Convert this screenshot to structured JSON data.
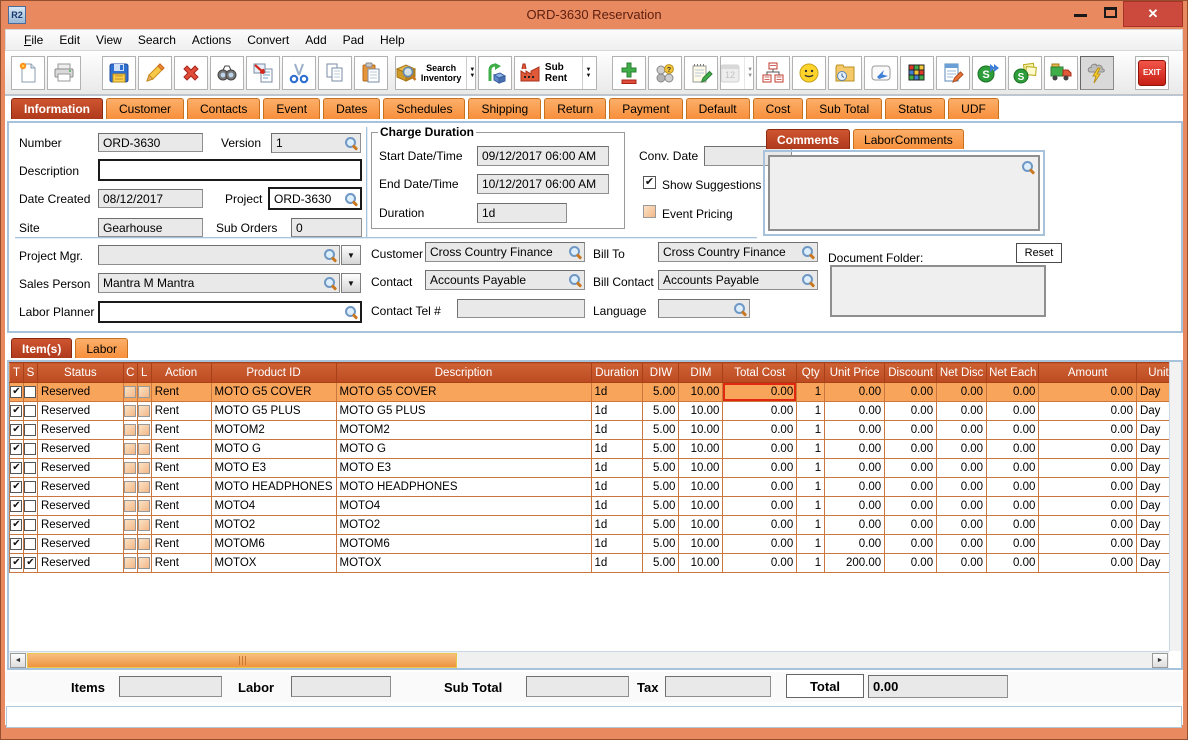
{
  "window": {
    "title": "ORD-3630 Reservation",
    "app_icon_label": "R2"
  },
  "menu": {
    "items": [
      "File",
      "Edit",
      "View",
      "Search",
      "Actions",
      "Convert",
      "Add",
      "Pad",
      "Help"
    ]
  },
  "toolbar": {
    "search_inventory_line1": "Search",
    "search_inventory_line2": "Inventory",
    "sub_rent_label": "Sub Rent",
    "exit_label": "EXIT",
    "icons": [
      "new-document",
      "print",
      "save",
      "edit-pencil",
      "delete",
      "find-binoculars",
      "transfer-document",
      "cut",
      "copy",
      "paste",
      "search-inventory",
      "availability-cube",
      "sub-rent-factory",
      "add-remove",
      "group-query",
      "notepad-edit",
      "calendar",
      "org-chart",
      "smiley",
      "folder-clock",
      "send-key",
      "color-blocks",
      "document-edit",
      "sync-forward",
      "sync-notes",
      "truck",
      "lightning",
      "exit"
    ]
  },
  "tabs": {
    "active": "Information",
    "items": [
      "Information",
      "Customer",
      "Contacts",
      "Event",
      "Dates",
      "Schedules",
      "Shipping",
      "Return",
      "Payment",
      "Default",
      "Cost",
      "Sub Total",
      "Status",
      "UDF"
    ]
  },
  "info": {
    "number_label": "Number",
    "number": "ORD-3630",
    "version_label": "Version",
    "version": "1",
    "description_label": "Description",
    "description": "",
    "date_created_label": "Date Created",
    "date_created": "08/12/2017",
    "project_label": "Project",
    "project": "ORD-3630",
    "site_label": "Site",
    "site": "Gearhouse",
    "sub_orders_label": "Sub Orders",
    "sub_orders": "0",
    "project_mgr_label": "Project Mgr.",
    "project_mgr": "",
    "sales_person_label": "Sales Person",
    "sales_person": "Mantra M Mantra",
    "labor_planner_label": "Labor Planner",
    "labor_planner": "",
    "charge_duration": {
      "title": "Charge Duration",
      "start_label": "Start Date/Time",
      "start": "09/12/2017 06:00 AM",
      "end_label": "End Date/Time",
      "end": "10/12/2017 06:00 AM",
      "duration_label": "Duration",
      "duration": "1d"
    },
    "conv_date_label": "Conv. Date",
    "conv_date": "",
    "show_suggestions_label": "Show Suggestions",
    "show_suggestions_checked": true,
    "event_pricing_label": "Event Pricing",
    "event_pricing_checked": false,
    "customer_label": "Customer",
    "customer": "Cross Country Finance",
    "bill_to_label": "Bill To",
    "bill_to": "Cross Country Finance",
    "contact_label": "Contact",
    "contact": "Accounts Payable",
    "bill_contact_label": "Bill Contact",
    "bill_contact": "Accounts Payable",
    "contact_tel_label": "Contact Tel #",
    "contact_tel": "",
    "language_label": "Language",
    "language": "",
    "comments": {
      "active": "Comments",
      "tabs": [
        "Comments",
        "LaborComments"
      ],
      "text": ""
    },
    "document_folder": {
      "label": "Document Folder:",
      "reset_label": "Reset",
      "text": ""
    }
  },
  "items_section": {
    "active": "Item(s)",
    "tabs": [
      "Item(s)",
      "Labor"
    ],
    "grid": {
      "columns": [
        "T",
        "S",
        "Status",
        "C",
        "L",
        "Action",
        "Product ID",
        "Description",
        "Duration",
        "DIW",
        "DIM",
        "Total Cost",
        "Qty",
        "Unit Price",
        "Discount",
        "Net Disc",
        "Net Each",
        "Amount",
        "Unit"
      ],
      "selected_row_index": 0,
      "focused_cell": {
        "row": 0,
        "column": "total_cost"
      },
      "rows": [
        {
          "t": true,
          "s": false,
          "status": "Reserved",
          "c": false,
          "l": false,
          "action": "Rent",
          "product_id": "MOTO G5 COVER",
          "description": "MOTO G5 COVER",
          "duration": "1d",
          "diw": "5.00",
          "dim": "10.00",
          "total_cost": "0.00",
          "qty": "1",
          "unit_price": "0.00",
          "discount": "0.00",
          "net_disc": "0.00",
          "net_each": "0.00",
          "amount": "0.00",
          "unit": "Day"
        },
        {
          "t": true,
          "s": false,
          "status": "Reserved",
          "c": false,
          "l": false,
          "action": "Rent",
          "product_id": "MOTO G5 PLUS",
          "description": "MOTO G5 PLUS",
          "duration": "1d",
          "diw": "5.00",
          "dim": "10.00",
          "total_cost": "0.00",
          "qty": "1",
          "unit_price": "0.00",
          "discount": "0.00",
          "net_disc": "0.00",
          "net_each": "0.00",
          "amount": "0.00",
          "unit": "Day"
        },
        {
          "t": true,
          "s": false,
          "status": "Reserved",
          "c": false,
          "l": false,
          "action": "Rent",
          "product_id": "MOTOM2",
          "description": "MOTOM2",
          "duration": "1d",
          "diw": "5.00",
          "dim": "10.00",
          "total_cost": "0.00",
          "qty": "1",
          "unit_price": "0.00",
          "discount": "0.00",
          "net_disc": "0.00",
          "net_each": "0.00",
          "amount": "0.00",
          "unit": "Day"
        },
        {
          "t": true,
          "s": false,
          "status": "Reserved",
          "c": false,
          "l": false,
          "action": "Rent",
          "product_id": "MOTO G",
          "description": "MOTO G",
          "duration": "1d",
          "diw": "5.00",
          "dim": "10.00",
          "total_cost": "0.00",
          "qty": "1",
          "unit_price": "0.00",
          "discount": "0.00",
          "net_disc": "0.00",
          "net_each": "0.00",
          "amount": "0.00",
          "unit": "Day"
        },
        {
          "t": true,
          "s": false,
          "status": "Reserved",
          "c": false,
          "l": false,
          "action": "Rent",
          "product_id": "MOTO E3",
          "description": "MOTO E3",
          "duration": "1d",
          "diw": "5.00",
          "dim": "10.00",
          "total_cost": "0.00",
          "qty": "1",
          "unit_price": "0.00",
          "discount": "0.00",
          "net_disc": "0.00",
          "net_each": "0.00",
          "amount": "0.00",
          "unit": "Day"
        },
        {
          "t": true,
          "s": false,
          "status": "Reserved",
          "c": false,
          "l": false,
          "action": "Rent",
          "product_id": "MOTO HEADPHONES",
          "description": "MOTO HEADPHONES",
          "duration": "1d",
          "diw": "5.00",
          "dim": "10.00",
          "total_cost": "0.00",
          "qty": "1",
          "unit_price": "0.00",
          "discount": "0.00",
          "net_disc": "0.00",
          "net_each": "0.00",
          "amount": "0.00",
          "unit": "Day"
        },
        {
          "t": true,
          "s": false,
          "status": "Reserved",
          "c": false,
          "l": false,
          "action": "Rent",
          "product_id": "MOTO4",
          "description": "MOTO4",
          "duration": "1d",
          "diw": "5.00",
          "dim": "10.00",
          "total_cost": "0.00",
          "qty": "1",
          "unit_price": "0.00",
          "discount": "0.00",
          "net_disc": "0.00",
          "net_each": "0.00",
          "amount": "0.00",
          "unit": "Day"
        },
        {
          "t": true,
          "s": false,
          "status": "Reserved",
          "c": false,
          "l": false,
          "action": "Rent",
          "product_id": "MOTO2",
          "description": "MOTO2",
          "duration": "1d",
          "diw": "5.00",
          "dim": "10.00",
          "total_cost": "0.00",
          "qty": "1",
          "unit_price": "0.00",
          "discount": "0.00",
          "net_disc": "0.00",
          "net_each": "0.00",
          "amount": "0.00",
          "unit": "Day"
        },
        {
          "t": true,
          "s": false,
          "status": "Reserved",
          "c": false,
          "l": false,
          "action": "Rent",
          "product_id": "MOTOM6",
          "description": "MOTOM6",
          "duration": "1d",
          "diw": "5.00",
          "dim": "10.00",
          "total_cost": "0.00",
          "qty": "1",
          "unit_price": "0.00",
          "discount": "0.00",
          "net_disc": "0.00",
          "net_each": "0.00",
          "amount": "0.00",
          "unit": "Day"
        },
        {
          "t": true,
          "s": true,
          "status": "Reserved",
          "c": false,
          "l": false,
          "action": "Rent",
          "product_id": "MOTOX",
          "description": "MOTOX",
          "duration": "1d",
          "diw": "5.00",
          "dim": "10.00",
          "total_cost": "0.00",
          "qty": "1",
          "unit_price": "200.00",
          "discount": "0.00",
          "net_disc": "0.00",
          "net_each": "0.00",
          "amount": "0.00",
          "unit": "Day"
        }
      ]
    }
  },
  "totals": {
    "items_label": "Items",
    "items": "",
    "labor_label": "Labor",
    "labor": "",
    "sub_total_label": "Sub Total",
    "sub_total": "",
    "tax_label": "Tax",
    "tax": "",
    "total_label": "Total",
    "total": "0.00"
  }
}
